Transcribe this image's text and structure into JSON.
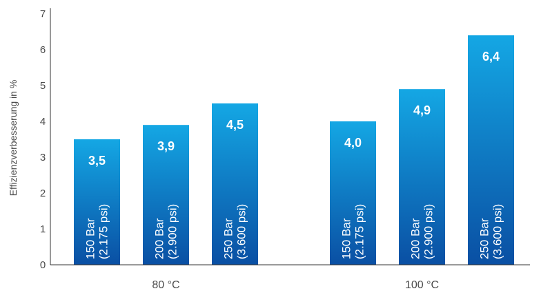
{
  "chart_data": {
    "type": "bar",
    "title": "",
    "xlabel": "",
    "ylabel": "Effizienzverbesserung in %",
    "ylim": [
      0,
      7
    ],
    "yticks": [
      "0",
      "1",
      "2",
      "3",
      "4",
      "5",
      "6",
      "7"
    ],
    "grid": false,
    "groups": [
      {
        "name": "80 °C",
        "bars": [
          {
            "label_line1": "150 Bar",
            "label_line2": "(2.175 psi)",
            "value": 3.5,
            "value_label": "3,5"
          },
          {
            "label_line1": "200 Bar",
            "label_line2": "(2.900 psi)",
            "value": 3.9,
            "value_label": "3,9"
          },
          {
            "label_line1": "250 Bar",
            "label_line2": "(3.600 psi)",
            "value": 4.5,
            "value_label": "4,5"
          }
        ]
      },
      {
        "name": "100 °C",
        "bars": [
          {
            "label_line1": "150 Bar",
            "label_line2": "(2.175 psi)",
            "value": 4.0,
            "value_label": "4,0"
          },
          {
            "label_line1": "200 Bar",
            "label_line2": "(2.900 psi)",
            "value": 4.9,
            "value_label": "4,9"
          },
          {
            "label_line1": "250 Bar",
            "label_line2": "(3.600 psi)",
            "value": 6.4,
            "value_label": "6,4"
          }
        ]
      }
    ],
    "colors": {
      "bar_top": "#14a7e4",
      "bar_bottom": "#0a4fa3",
      "axis": "#333333"
    }
  }
}
